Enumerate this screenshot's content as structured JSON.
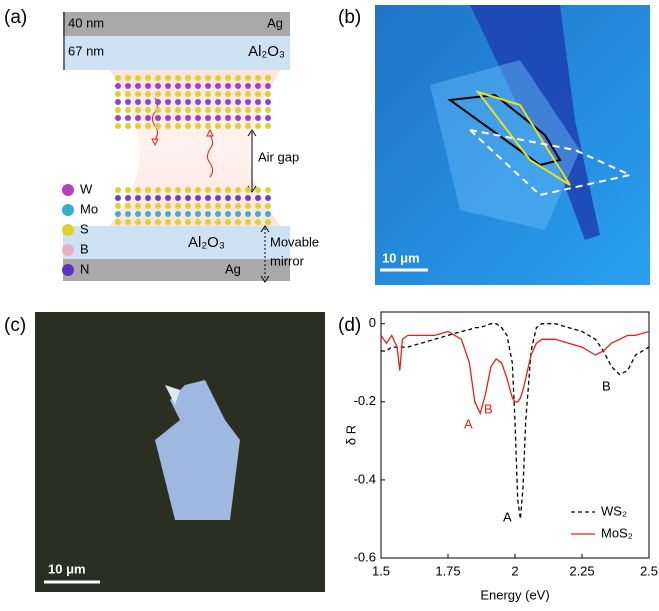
{
  "panel_labels": [
    "(a)",
    "(b)",
    "(c)",
    "(d)"
  ],
  "diagram": {
    "top_layers": [
      {
        "thickness": "40 nm",
        "material": "Ag"
      },
      {
        "thickness": "67 nm",
        "material": "Al₂O₃"
      }
    ],
    "air_gap": "Air gap",
    "bottom_layers": [
      "Al₂O₃",
      "Ag"
    ],
    "mirror_label": [
      "Movable",
      "mirror"
    ],
    "legend": [
      "W",
      "Mo",
      "S",
      "B",
      "N"
    ]
  },
  "scale_bars": [
    "10 μm",
    "10 μm"
  ],
  "chart_data": {
    "type": "line",
    "xlabel": "Energy (eV)",
    "ylabel": "δ R",
    "x": [
      1.5,
      1.52,
      1.54,
      1.56,
      1.57,
      1.58,
      1.6,
      1.65,
      1.7,
      1.75,
      1.8,
      1.83,
      1.85,
      1.87,
      1.89,
      1.91,
      1.93,
      1.95,
      1.97,
      1.99,
      2.0,
      2.01,
      2.02,
      2.03,
      2.04,
      2.06,
      2.08,
      2.1,
      2.15,
      2.2,
      2.25,
      2.3,
      2.33,
      2.36,
      2.39,
      2.42,
      2.45,
      2.5
    ],
    "series": [
      {
        "name": "WS₂",
        "color": "#000000",
        "dash": true,
        "values": [
          -0.07,
          -0.07,
          -0.06,
          -0.06,
          -0.06,
          -0.06,
          -0.06,
          -0.05,
          -0.04,
          -0.03,
          -0.02,
          -0.015,
          -0.01,
          -0.01,
          -0.005,
          0,
          0,
          -0.01,
          -0.03,
          -0.1,
          -0.25,
          -0.45,
          -0.5,
          -0.42,
          -0.25,
          -0.07,
          -0.01,
          0,
          0,
          -0.01,
          -0.02,
          -0.04,
          -0.07,
          -0.11,
          -0.13,
          -0.12,
          -0.08,
          -0.06
        ]
      },
      {
        "name": "MoS₂",
        "color": "#e8201c",
        "dash": false,
        "values": [
          -0.03,
          -0.05,
          -0.03,
          -0.06,
          -0.12,
          -0.04,
          -0.03,
          -0.03,
          -0.03,
          -0.02,
          -0.04,
          -0.1,
          -0.2,
          -0.23,
          -0.18,
          -0.11,
          -0.09,
          -0.1,
          -0.14,
          -0.19,
          -0.2,
          -0.2,
          -0.19,
          -0.17,
          -0.14,
          -0.08,
          -0.05,
          -0.04,
          -0.04,
          -0.05,
          -0.06,
          -0.08,
          -0.07,
          -0.05,
          -0.04,
          -0.03,
          -0.03,
          -0.02
        ]
      }
    ],
    "annotations": [
      "A",
      "B",
      "A",
      "B"
    ],
    "xlim": [
      1.5,
      2.5
    ],
    "xticks": [
      1.5,
      1.75,
      2,
      2.25,
      2.5
    ],
    "ylim": [
      -0.6,
      0.03
    ],
    "yticks": [
      0,
      -0.2,
      -0.4,
      -0.6
    ],
    "legend": "lower right"
  }
}
